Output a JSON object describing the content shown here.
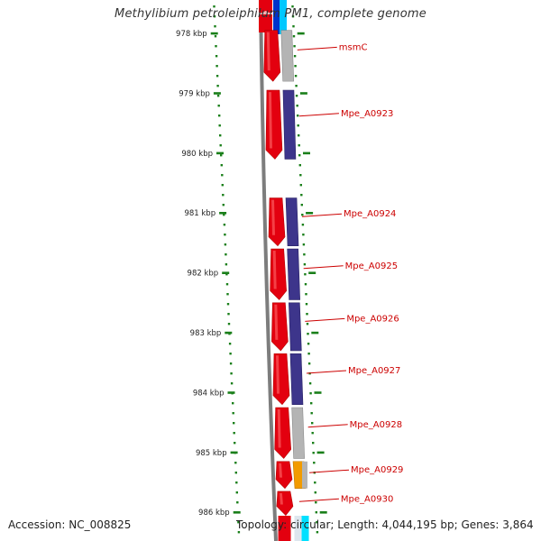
{
  "title": "Methylibium petroleiphilum PM1, complete genome",
  "accession_text": "Accession: NC_008825",
  "summary_text": "Topology: circular; Length: 4,044,195 bp; Genes: 3,864",
  "colors": {
    "forward_gene": "#e3000f",
    "cog_blue": "#3d358b",
    "cog_gray": "#b4b4b4",
    "cog_orange": "#f29b00",
    "tick_green": "#1a7f1a",
    "label_red": "#cc0000",
    "backbone": "#7d7d7d"
  },
  "scale_ticks": [
    {
      "label": "978 kbp",
      "kbp": 978
    },
    {
      "label": "979 kbp",
      "kbp": 979
    },
    {
      "label": "980 kbp",
      "kbp": 980
    },
    {
      "label": "981 kbp",
      "kbp": 981
    },
    {
      "label": "982 kbp",
      "kbp": 982
    },
    {
      "label": "983 kbp",
      "kbp": 983
    },
    {
      "label": "984 kbp",
      "kbp": 984
    },
    {
      "label": "985 kbp",
      "kbp": 985
    },
    {
      "label": "986 kbp",
      "kbp": 986
    }
  ],
  "genes": [
    {
      "name": "msmC",
      "start_kbp": 977.95,
      "end_kbp": 978.8,
      "strand": "+",
      "cog": "gray"
    },
    {
      "name": "Mpe_A0923",
      "start_kbp": 978.95,
      "end_kbp": 980.1,
      "strand": "+",
      "cog": "blue"
    },
    {
      "name": "Mpe_A0924",
      "start_kbp": 980.75,
      "end_kbp": 981.55,
      "strand": "+",
      "cog": "blue"
    },
    {
      "name": "Mpe_A0925",
      "start_kbp": 981.6,
      "end_kbp": 982.45,
      "strand": "+",
      "cog": "blue"
    },
    {
      "name": "Mpe_A0926",
      "start_kbp": 982.5,
      "end_kbp": 983.3,
      "strand": "+",
      "cog": "blue"
    },
    {
      "name": "Mpe_A0927",
      "start_kbp": 983.35,
      "end_kbp": 984.2,
      "strand": "+",
      "cog": "blue"
    },
    {
      "name": "Mpe_A0928",
      "start_kbp": 984.25,
      "end_kbp": 985.1,
      "strand": "+",
      "cog": "gray"
    },
    {
      "name": "Mpe_A0929",
      "start_kbp": 985.15,
      "end_kbp": 985.6,
      "strand": "+",
      "cog": "orange"
    },
    {
      "name": "Mpe_A0930",
      "start_kbp": 985.65,
      "end_kbp": 986.05,
      "strand": "+",
      "cog": "none"
    }
  ]
}
